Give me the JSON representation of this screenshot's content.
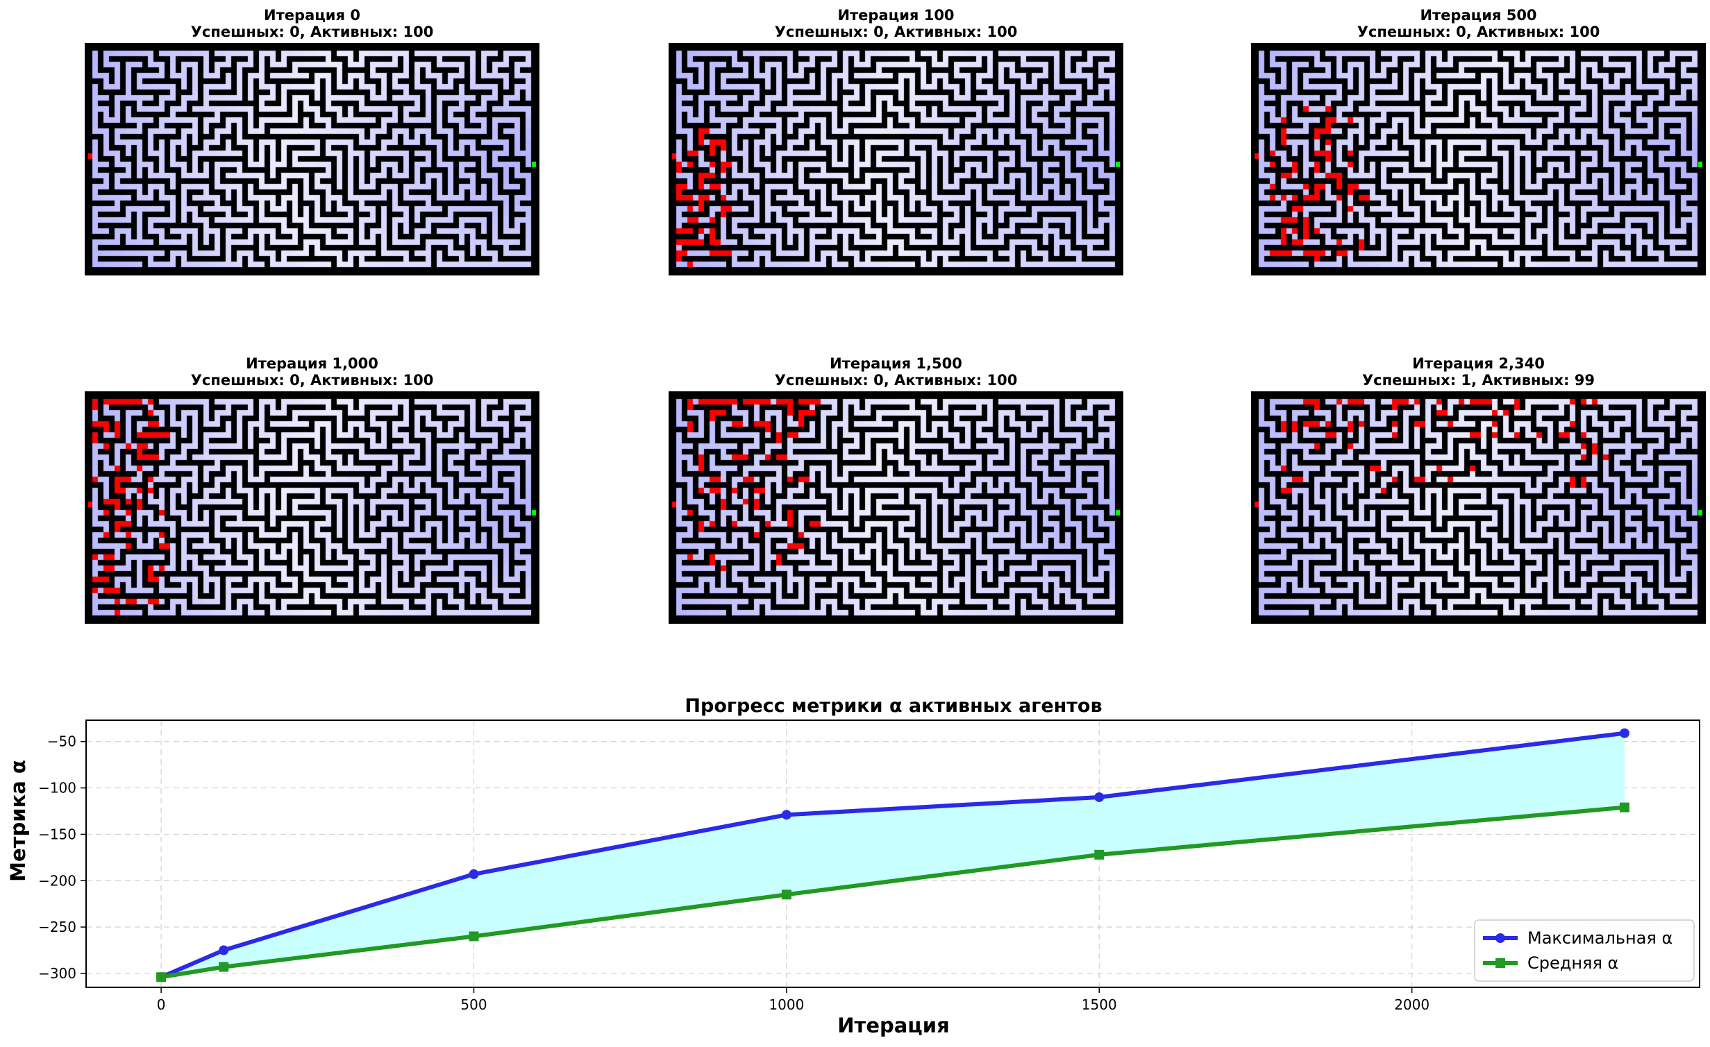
{
  "panels": [
    {
      "title": "Итерация 0",
      "stats": "Успешных: 0, Активных: 100",
      "iteration": 0,
      "agents": 0
    },
    {
      "title": "Итерация 100",
      "stats": "Успешных: 0, Активных: 100",
      "iteration": 100,
      "agents": 60
    },
    {
      "title": "Итерация 500",
      "stats": "Успешных: 0, Активных: 100",
      "iteration": 500,
      "agents": 75
    },
    {
      "title": "Итерация 1,000",
      "stats": "Успешных: 0, Активных: 100",
      "iteration": 1000,
      "agents": 80
    },
    {
      "title": "Итерация 1,500",
      "stats": "Успешных: 0, Активных: 100",
      "iteration": 1500,
      "agents": 85
    },
    {
      "title": "Итерация 2,340",
      "stats": "Успешных: 1, Активных: 99",
      "iteration": 2340,
      "agents": 70
    }
  ],
  "colors": {
    "wall": "#000000",
    "path_light": "#ffffff",
    "path_blue": "#b4b4ff",
    "agent": "#ff0000",
    "start": "#ff0000",
    "exit": "#00ff00",
    "max_line": "#2a2ae8",
    "mean_line": "#229922",
    "fill": "#c8ffff"
  },
  "chart_data": {
    "type": "line",
    "title": "Прогресс метрики α активных агентов",
    "xlabel": "Итерация",
    "ylabel": "Метрика α",
    "xlim": [
      -120,
      2460
    ],
    "ylim": [
      -315,
      -27
    ],
    "xticks": [
      0,
      500,
      1000,
      1500,
      2000
    ],
    "yticks": [
      -50,
      -100,
      -150,
      -200,
      -250,
      -300
    ],
    "grid": true,
    "legend_position": "lower-right",
    "x": [
      0,
      100,
      500,
      1000,
      1500,
      2340
    ],
    "series": [
      {
        "name": "Максимальная α",
        "values": [
          -304,
          -275,
          -193,
          -129,
          -110,
          -41
        ],
        "marker": "circle"
      },
      {
        "name": "Средняя α",
        "values": [
          -304,
          -293,
          -260,
          -215,
          -172,
          -121
        ],
        "marker": "square"
      }
    ],
    "fill_between": true
  }
}
